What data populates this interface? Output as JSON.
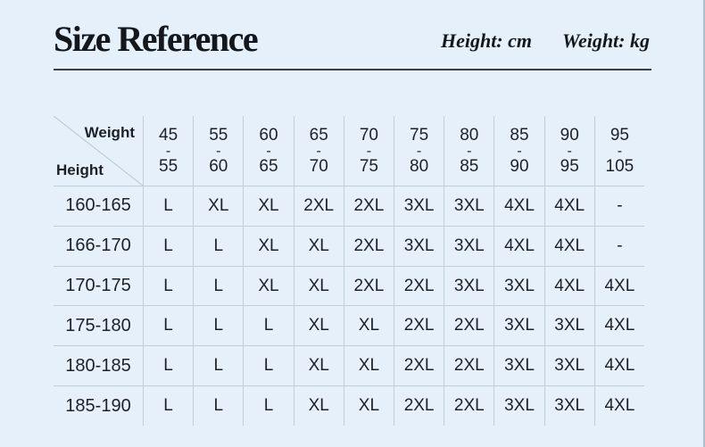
{
  "chart_data": {
    "type": "table",
    "title": "Size Reference",
    "unit_labels": [
      "Height: cm",
      "Weight: kg"
    ],
    "corner": {
      "column_axis": "Weight",
      "row_axis": "Height"
    },
    "separator": "-",
    "weight_ranges": [
      {
        "min": "45",
        "max": "55"
      },
      {
        "min": "55",
        "max": "60"
      },
      {
        "min": "60",
        "max": "65"
      },
      {
        "min": "65",
        "max": "70"
      },
      {
        "min": "70",
        "max": "75"
      },
      {
        "min": "75",
        "max": "80"
      },
      {
        "min": "80",
        "max": "85"
      },
      {
        "min": "85",
        "max": "90"
      },
      {
        "min": "90",
        "max": "95"
      },
      {
        "min": "95",
        "max": "105"
      }
    ],
    "height_rows": [
      {
        "label": "160-165",
        "sizes": [
          "L",
          "XL",
          "XL",
          "2XL",
          "2XL",
          "3XL",
          "3XL",
          "4XL",
          "4XL",
          "-"
        ]
      },
      {
        "label": "166-170",
        "sizes": [
          "L",
          "L",
          "XL",
          "XL",
          "2XL",
          "3XL",
          "3XL",
          "4XL",
          "4XL",
          "-"
        ]
      },
      {
        "label": "170-175",
        "sizes": [
          "L",
          "L",
          "XL",
          "XL",
          "2XL",
          "2XL",
          "3XL",
          "3XL",
          "4XL",
          "4XL"
        ]
      },
      {
        "label": "175-180",
        "sizes": [
          "L",
          "L",
          "L",
          "XL",
          "XL",
          "2XL",
          "2XL",
          "3XL",
          "3XL",
          "4XL"
        ]
      },
      {
        "label": "180-185",
        "sizes": [
          "L",
          "L",
          "L",
          "XL",
          "XL",
          "2XL",
          "2XL",
          "3XL",
          "3XL",
          "4XL"
        ]
      },
      {
        "label": "185-190",
        "sizes": [
          "L",
          "L",
          "L",
          "XL",
          "XL",
          "2XL",
          "2XL",
          "3XL",
          "3XL",
          "4XL"
        ]
      }
    ],
    "layout_hints": {
      "grid": true,
      "outer_border": false,
      "corner_divider": "diagonal"
    }
  },
  "colors": {
    "background": "#e5f0fa",
    "grid_line": "#becfdc",
    "text": "#1d2127",
    "title_underline": "#3a4046"
  }
}
